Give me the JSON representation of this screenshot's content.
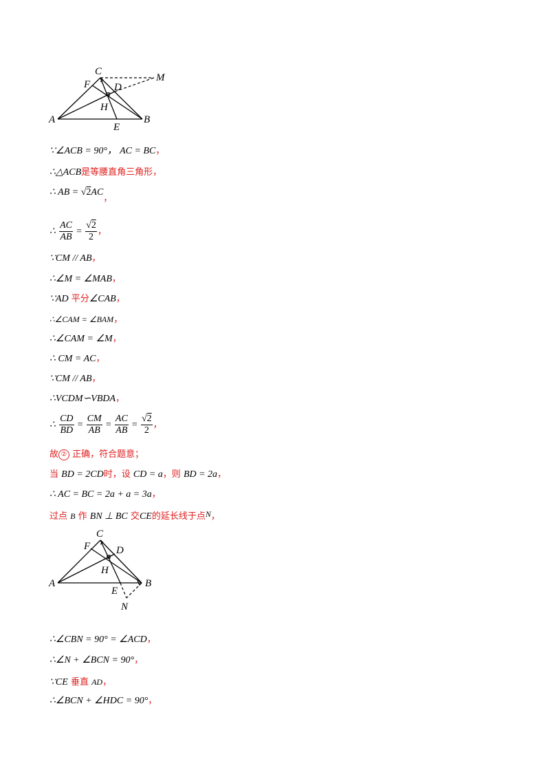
{
  "figure1": {
    "labels": {
      "C": "C",
      "M": "M",
      "F": "F",
      "D": "D",
      "H": "H",
      "A": "A",
      "E": "E",
      "B": "B"
    }
  },
  "figure2": {
    "labels": {
      "C": "C",
      "F": "F",
      "D": "D",
      "H": "H",
      "A": "A",
      "E": "E",
      "B": "B",
      "N": "N"
    }
  },
  "lines": {
    "l1": {
      "because": "∵∠ACB = 90°，",
      "eq": "AC = BC",
      "tail": "，"
    },
    "l2": {
      "prefix": "∴△ACB",
      "text": "是等腰直角三角形，"
    },
    "l3": {
      "prefix": "∴ AB = ",
      "sqrt_radical": "√",
      "sqrt_arg": "2",
      "suffix": "AC",
      "tail": "，"
    },
    "l4": {
      "prefix": "∴",
      "num1": "AC",
      "den1": "AB",
      "eq": "=",
      "num2_root": "√",
      "num2_arg": "2",
      "den2": "2",
      "tail": "，"
    },
    "l5": {
      "text": "∵CM // AB",
      "tail": "，"
    },
    "l6": {
      "text": "∴∠M = ∠MAB",
      "tail": "，"
    },
    "l7": {
      "prefix": "∵AD",
      "cn": "平分",
      "suffix": "∠CAB",
      "tail": "，"
    },
    "l8": {
      "text": "∴∠CAM = ∠BAM",
      "tail": "，"
    },
    "l9": {
      "text": "∴∠CAM = ∠M",
      "tail": "，"
    },
    "l10": {
      "text": "∴ CM = AC",
      "tail": "，"
    },
    "l11": {
      "text": "∵CM // AB",
      "tail": "，"
    },
    "l12": {
      "text": "∴VCDM∽VBDA",
      "tail": "，"
    },
    "l13": {
      "prefix": "∴",
      "n1": "CD",
      "d1": "BD",
      "n2": "CM",
      "d2": "AB",
      "n3": "AC",
      "d3": "AB",
      "n4_arg": "2",
      "d4": "2",
      "eq": "=",
      "tail": "，"
    },
    "l14": {
      "cn1": "故",
      "circled": "②",
      "cn2": "正确，符合题意；"
    },
    "l15": {
      "cn1": "当",
      "m1": "BD = 2CD",
      "cn2": "时，设",
      "m2": "CD = a",
      "cn3": "，则",
      "m3": "BD = 2a",
      "tail": "，"
    },
    "l16": {
      "text": "∴ AC = BC = 2a + a = 3a",
      "tail": "，"
    },
    "l17": {
      "cn1": "过点",
      "m1": "B",
      "cn2": "作",
      "m2": "BN ⊥ BC",
      "cn3": "交",
      "m3": "CE",
      "cn4": "的延长线于点",
      "m4": "N",
      "tail": "，"
    },
    "l18": {
      "text": "∴∠CBN = 90° = ∠ACD",
      "tail": "，"
    },
    "l19": {
      "text": "∴∠N + ∠BCN = 90°",
      "tail": "，"
    },
    "l20": {
      "prefix": "∵CE",
      "cn": "垂直",
      "suffix": "AD",
      "tail": "，"
    },
    "l21": {
      "text": "∴∠BCN + ∠HDC = 90°",
      "tail": "，"
    }
  }
}
